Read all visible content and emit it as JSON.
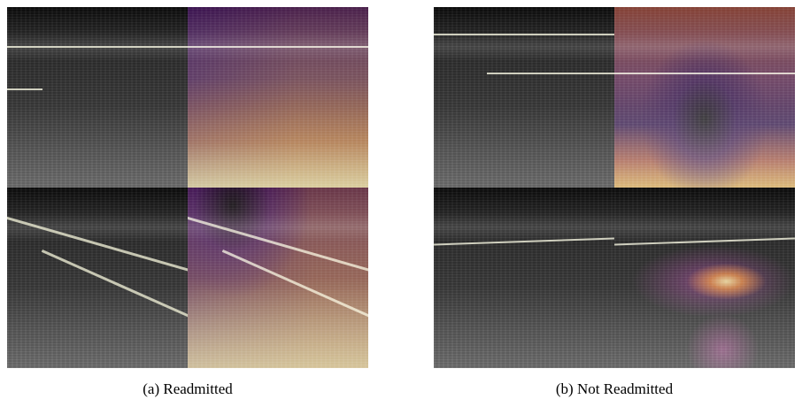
{
  "figure": {
    "panels": [
      {
        "caption": "(a) Readmitted"
      },
      {
        "caption": "(b) Not Readmitted"
      }
    ]
  }
}
